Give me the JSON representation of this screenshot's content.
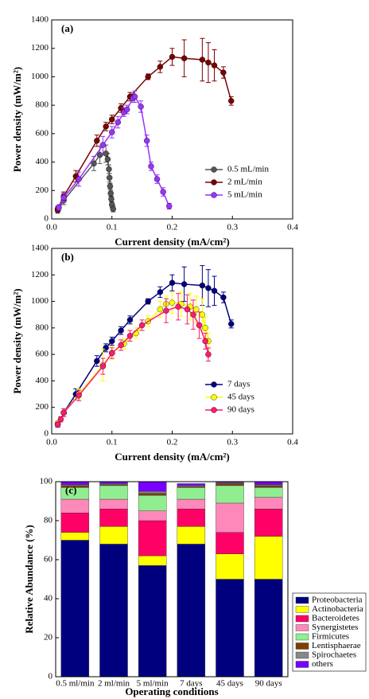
{
  "chart_data": [
    {
      "type": "line",
      "annotation": "(a)",
      "xlabel": "Current density (mA/cm²)",
      "ylabel": "Power density (mW/m²)",
      "xlim": [
        0,
        0.4
      ],
      "xticks": [
        {
          "value": 0,
          "label": "0.0"
        },
        0.1,
        0.2,
        0.3,
        0.4
      ],
      "ylim": [
        0,
        1400
      ],
      "yticks": [
        0,
        200,
        400,
        600,
        800,
        1000,
        1200,
        1400
      ],
      "legend": "lower right",
      "series": [
        {
          "name": "0.5 mL/min",
          "color": "#555555",
          "x": [
            0.01,
            0.02,
            0.07,
            0.08,
            0.09,
            0.093,
            0.095,
            0.096,
            0.097,
            0.098,
            0.099,
            0.1,
            0.102
          ],
          "values": [
            60,
            130,
            390,
            450,
            460,
            420,
            350,
            290,
            230,
            180,
            140,
            100,
            70
          ],
          "errors": [
            20,
            30,
            50,
            60,
            60,
            40,
            30,
            30,
            20,
            20,
            20,
            20,
            20
          ]
        },
        {
          "name": "2 mL/min",
          "color": "#7b0000",
          "x": [
            0.01,
            0.02,
            0.04,
            0.075,
            0.09,
            0.1,
            0.115,
            0.13,
            0.16,
            0.18,
            0.2,
            0.22,
            0.25,
            0.26,
            0.27,
            0.285,
            0.298
          ],
          "values": [
            70,
            160,
            300,
            550,
            650,
            700,
            780,
            860,
            1000,
            1070,
            1140,
            1130,
            1120,
            1100,
            1080,
            1030,
            830
          ],
          "errors": [
            20,
            30,
            40,
            40,
            30,
            30,
            30,
            30,
            20,
            40,
            60,
            130,
            150,
            140,
            110,
            40,
            30
          ]
        },
        {
          "name": "5 mL/min",
          "color": "#9933ff",
          "x": [
            0.012,
            0.02,
            0.045,
            0.085,
            0.1,
            0.11,
            0.12,
            0.125,
            0.135,
            0.138,
            0.148,
            0.158,
            0.165,
            0.175,
            0.185,
            0.195
          ],
          "values": [
            80,
            150,
            280,
            520,
            610,
            680,
            750,
            770,
            850,
            860,
            790,
            550,
            370,
            280,
            190,
            90
          ],
          "errors": [
            20,
            30,
            50,
            60,
            40,
            40,
            30,
            30,
            30,
            40,
            40,
            40,
            30,
            30,
            30,
            20
          ]
        }
      ]
    },
    {
      "type": "line",
      "annotation": "(b)",
      "xlabel": "Current density (mA/cm²)",
      "ylabel": "Power density (mW/m²)",
      "xlim": [
        0,
        0.4
      ],
      "xticks": [
        {
          "value": 0,
          "label": "0.0"
        },
        0.1,
        0.2,
        0.3,
        0.4
      ],
      "ylim": [
        0,
        1400
      ],
      "yticks": [
        0,
        200,
        400,
        600,
        800,
        1000,
        1200,
        1400
      ],
      "legend": "lower right",
      "series": [
        {
          "name": "7 days",
          "color": "#000080",
          "x": [
            0.01,
            0.02,
            0.04,
            0.075,
            0.09,
            0.1,
            0.115,
            0.13,
            0.16,
            0.18,
            0.2,
            0.22,
            0.25,
            0.26,
            0.27,
            0.285,
            0.298
          ],
          "values": [
            70,
            160,
            300,
            550,
            650,
            700,
            780,
            860,
            1000,
            1070,
            1140,
            1130,
            1120,
            1100,
            1080,
            1030,
            830
          ],
          "errors": [
            20,
            30,
            40,
            40,
            30,
            30,
            30,
            30,
            20,
            40,
            60,
            130,
            150,
            140,
            110,
            40,
            30
          ]
        },
        {
          "name": "45 days",
          "color": "#ffff00",
          "x": [
            0.01,
            0.02,
            0.045,
            0.085,
            0.1,
            0.12,
            0.14,
            0.16,
            0.18,
            0.19,
            0.2,
            0.215,
            0.23,
            0.24,
            0.25,
            0.255,
            0.26
          ],
          "values": [
            80,
            160,
            300,
            520,
            610,
            680,
            760,
            850,
            940,
            980,
            990,
            980,
            960,
            940,
            900,
            800,
            700
          ],
          "errors": [
            20,
            30,
            40,
            120,
            50,
            40,
            40,
            40,
            60,
            60,
            80,
            90,
            100,
            100,
            120,
            80,
            60
          ]
        },
        {
          "name": "90 days",
          "color": "#ff1a75",
          "x": [
            0.01,
            0.015,
            0.02,
            0.045,
            0.085,
            0.1,
            0.115,
            0.13,
            0.15,
            0.19,
            0.21,
            0.225,
            0.235,
            0.245,
            0.255,
            0.26
          ],
          "values": [
            70,
            110,
            160,
            290,
            510,
            610,
            670,
            740,
            820,
            930,
            960,
            940,
            900,
            820,
            700,
            600
          ],
          "errors": [
            20,
            20,
            30,
            40,
            60,
            40,
            40,
            40,
            40,
            90,
            100,
            110,
            110,
            100,
            60,
            50
          ]
        }
      ]
    },
    {
      "type": "stacked_bar",
      "annotation": "(c)",
      "xlabel": "Operating conditions",
      "ylabel": "Relative Abundance (%)",
      "categories": [
        "0.5 ml/min",
        "2 ml/min",
        "5 ml/min",
        "7 days",
        "45 days",
        "90 days"
      ],
      "ylim": [
        0,
        100
      ],
      "yticks": [
        0,
        20,
        40,
        60,
        80,
        100
      ],
      "legend": "right",
      "series": [
        {
          "name": "Proteobacteria",
          "color": "#00007f",
          "values": [
            70,
            68,
            57,
            68,
            50,
            50
          ]
        },
        {
          "name": "Actinobacteria",
          "color": "#ffff00",
          "values": [
            4,
            9,
            5,
            9,
            13,
            22
          ]
        },
        {
          "name": "Bacteroidetes",
          "color": "#ff0066",
          "values": [
            10,
            9,
            18,
            9,
            11,
            14
          ]
        },
        {
          "name": "Synergistetes",
          "color": "#ff88bb",
          "values": [
            7,
            5,
            5,
            5,
            15,
            6
          ]
        },
        {
          "name": "Firmicutes",
          "color": "#90ee90",
          "values": [
            6,
            7,
            8,
            6,
            9,
            5
          ]
        },
        {
          "name": "Lentisphaerae",
          "color": "#7b3f00",
          "values": [
            1,
            0.5,
            1,
            0.5,
            1,
            1
          ]
        },
        {
          "name": "Spirochaetes",
          "color": "#888888",
          "values": [
            0.5,
            0.5,
            1,
            0.5,
            0.5,
            0.5
          ]
        },
        {
          "name": "others",
          "color": "#7700ff",
          "values": [
            1.5,
            1,
            5,
            1,
            0.5,
            1.5
          ]
        }
      ]
    }
  ]
}
